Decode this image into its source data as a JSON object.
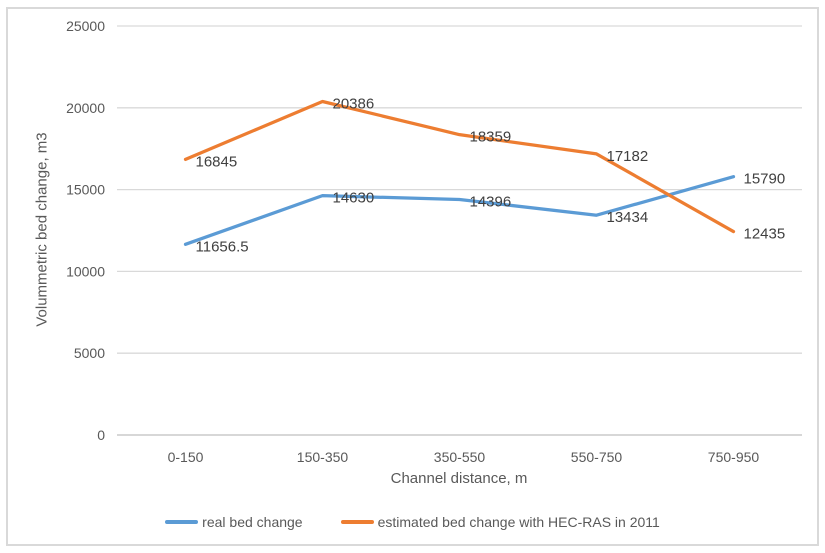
{
  "chart_data": {
    "type": "line",
    "categories": [
      "0-150",
      "150-350",
      "350-550",
      "550-750",
      "750-950"
    ],
    "series": [
      {
        "name": "real bed change",
        "color": "#5B9BD5",
        "values": [
          11656.5,
          14630,
          14396,
          13434,
          15790
        ],
        "data_labels": [
          "11656.5",
          "14630",
          "14396",
          "13434",
          "15790"
        ]
      },
      {
        "name": "estimated bed change with HEC-RAS in 2011",
        "color": "#ED7D31",
        "values": [
          16845,
          20386,
          18359,
          17182,
          12435
        ],
        "data_labels": [
          "16845",
          "20386",
          "18359",
          "17182",
          "12435"
        ]
      }
    ],
    "title": "",
    "xlabel": "Channel distance, m",
    "ylabel": "Volummetric bed change, m3",
    "ylim": [
      0,
      25000
    ],
    "ytick_step": 5000,
    "ytick_labels": [
      "0",
      "5000",
      "10000",
      "15000",
      "20000",
      "25000"
    ],
    "grid": true,
    "legend_position": "bottom",
    "show_data_labels": true
  },
  "colors": {
    "tick_text": "#595959",
    "data_label_text": "#404040",
    "gridline": "#d9d9d9",
    "axis_line": "#bfbfbf",
    "frame_border": "#d9d9d9",
    "background": "#ffffff"
  }
}
